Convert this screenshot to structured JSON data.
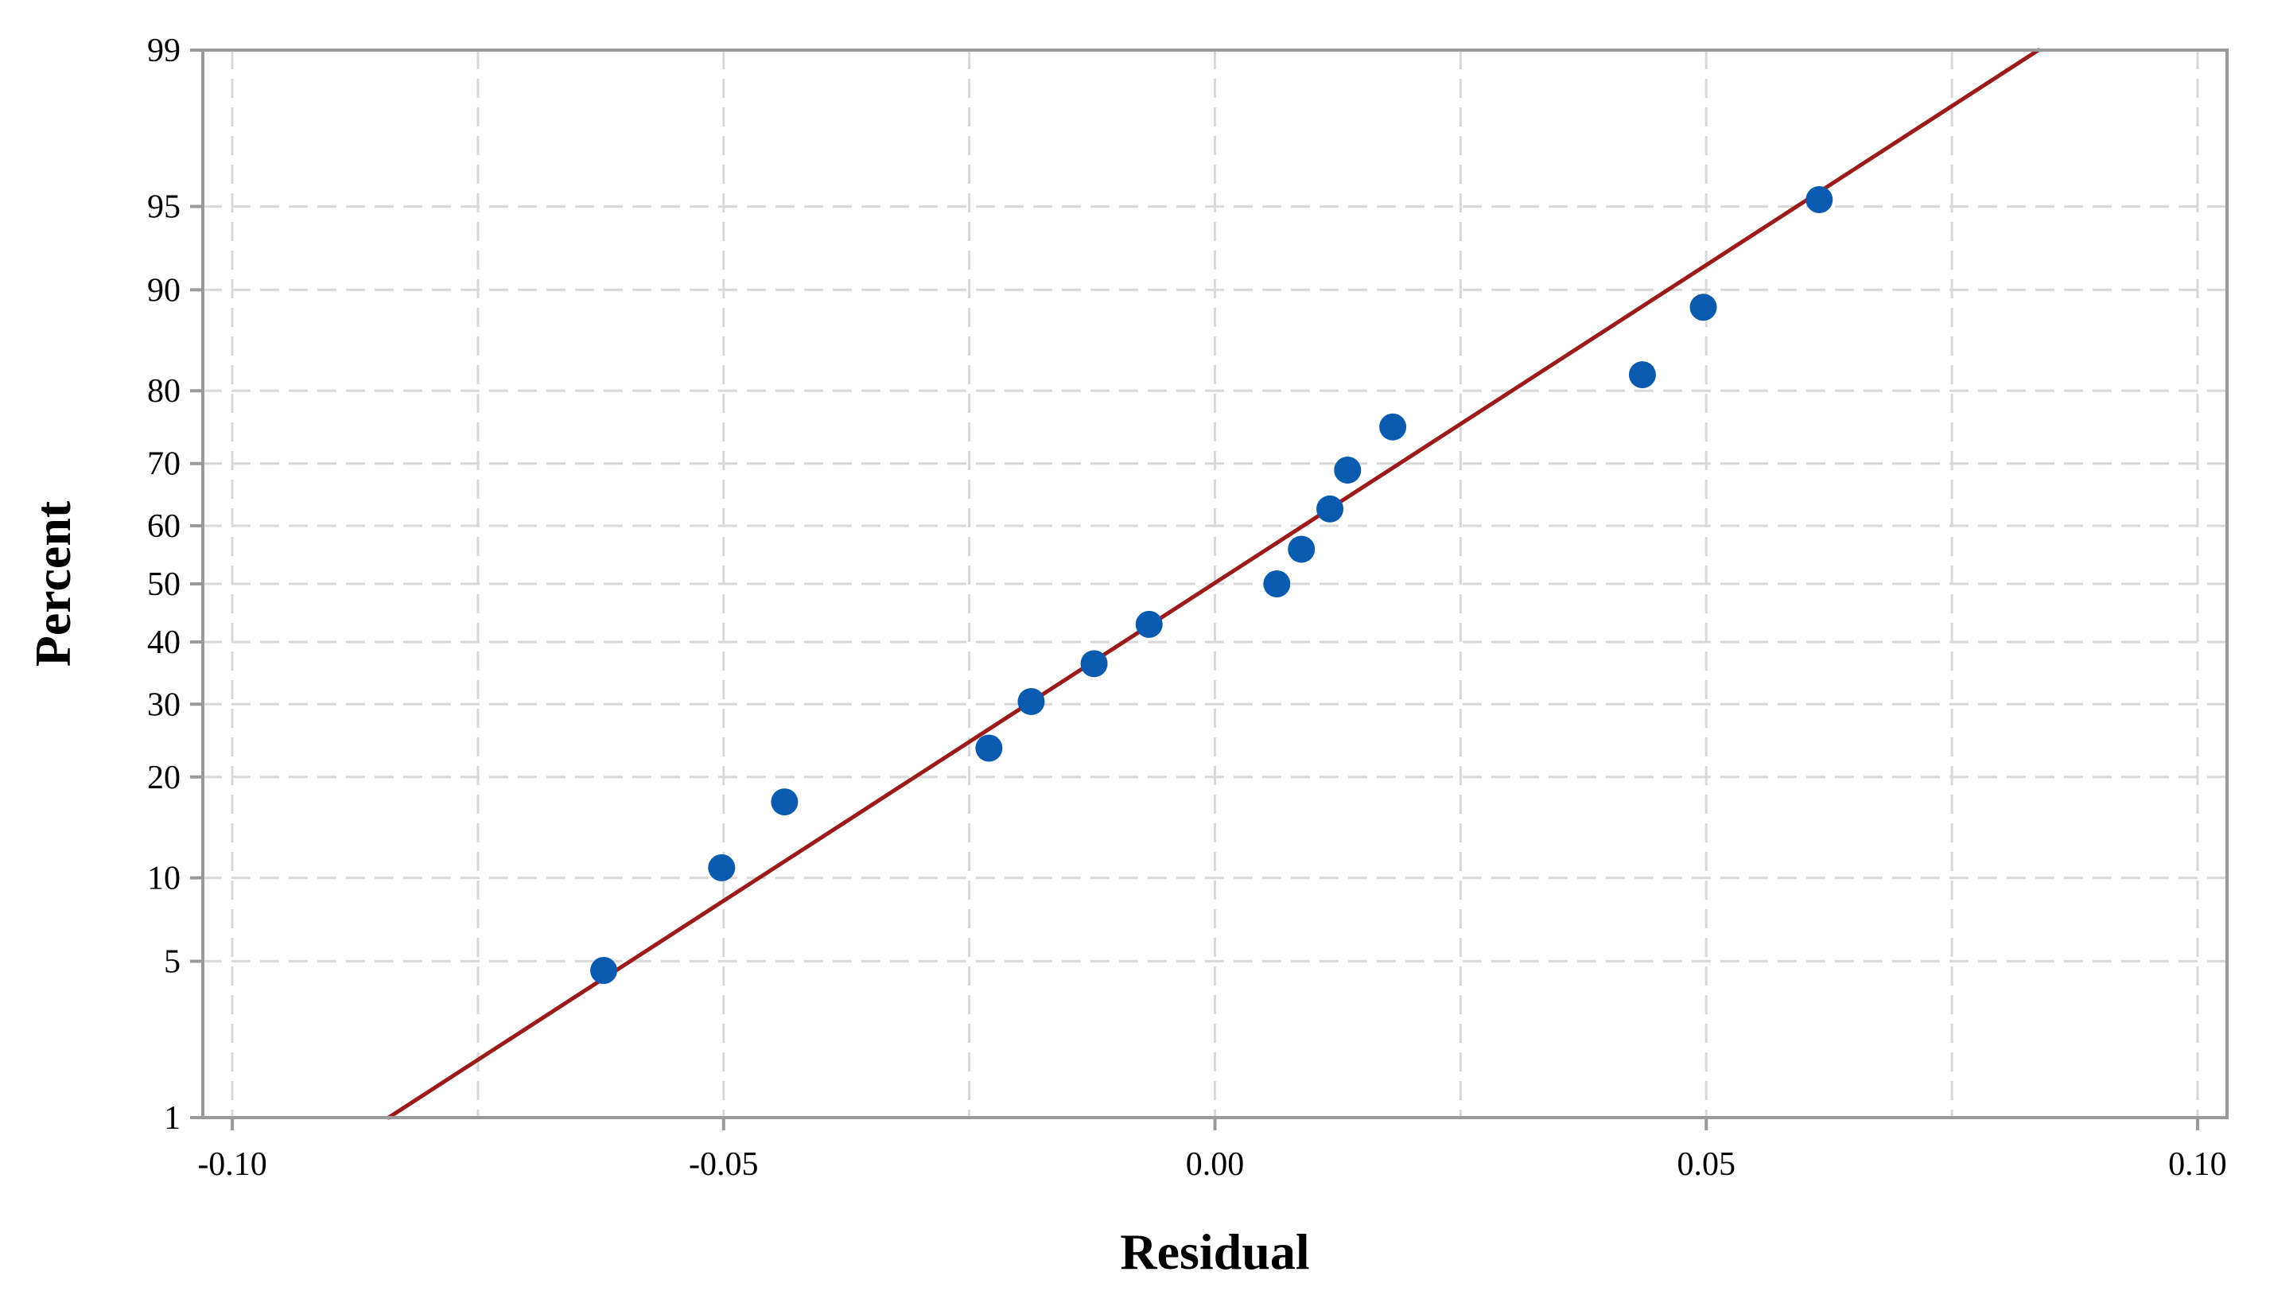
{
  "chart_data": {
    "type": "scatter",
    "scale_y": "normal-probability",
    "xlabel": "Residual",
    "ylabel": "Percent",
    "xlim": [
      -0.103,
      0.103
    ],
    "ylim": [
      1,
      99
    ],
    "x_ticks": [
      -0.1,
      -0.05,
      0.0,
      0.05,
      0.1
    ],
    "x_tick_labels": [
      "-0.10",
      "-0.05",
      "0.00",
      "0.05",
      "0.10"
    ],
    "x_minor_grid": [
      -0.075,
      -0.025,
      0.025,
      0.075
    ],
    "y_ticks": [
      1,
      5,
      10,
      20,
      30,
      40,
      50,
      60,
      70,
      80,
      90,
      95,
      99
    ],
    "y_tick_labels": [
      "1",
      "5",
      "10",
      "20",
      "30",
      "40",
      "50",
      "60",
      "70",
      "80",
      "90",
      "95",
      "99"
    ],
    "grid": true,
    "points": [
      {
        "x": -0.0622,
        "y": 4.6
      },
      {
        "x": -0.0502,
        "y": 10.8
      },
      {
        "x": -0.0438,
        "y": 17.1
      },
      {
        "x": -0.023,
        "y": 23.7
      },
      {
        "x": -0.0187,
        "y": 30.4
      },
      {
        "x": -0.0123,
        "y": 36.4
      },
      {
        "x": -0.0067,
        "y": 43.0
      },
      {
        "x": 0.0063,
        "y": 50.0
      },
      {
        "x": 0.0088,
        "y": 56.0
      },
      {
        "x": 0.0117,
        "y": 62.8
      },
      {
        "x": 0.0135,
        "y": 69.0
      },
      {
        "x": 0.0181,
        "y": 75.3
      },
      {
        "x": 0.0435,
        "y": 81.9
      },
      {
        "x": 0.0497,
        "y": 88.6
      },
      {
        "x": 0.0615,
        "y": 95.3
      }
    ],
    "fit_line": {
      "x1": -0.0841,
      "y1": 1,
      "x2": 0.0838,
      "y2": 99
    },
    "colors": {
      "points": "#0a5bb0",
      "fit_line": "#9b1b1b",
      "grid": "#d9d9d9",
      "frame": "#9a9a9a"
    }
  }
}
